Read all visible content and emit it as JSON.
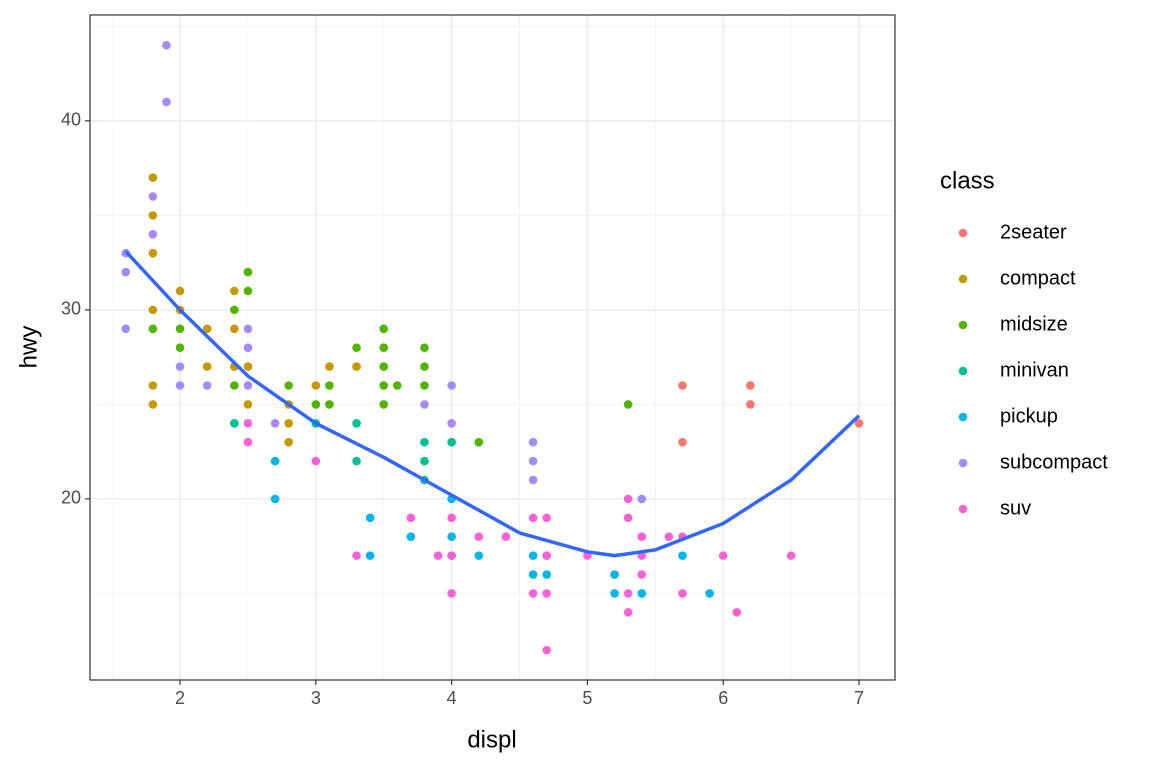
{
  "chart_data": {
    "type": "scatter",
    "x_label": "displ",
    "y_label": "hwy",
    "legend_title": "class",
    "legend_position": "right",
    "grid": true,
    "xlim": [
      1.337,
      7.265
    ],
    "ylim": [
      10.42,
      45.6
    ],
    "xticks": [
      2,
      3,
      4,
      5,
      6,
      7
    ],
    "yticks": [
      20,
      30,
      40
    ],
    "series": [
      {
        "name": "2seater",
        "color": "#F8766D",
        "x": [
          5.7,
          5.7,
          6.2,
          6.2,
          7.0
        ],
        "values": [
          26,
          23,
          26,
          25,
          24
        ]
      },
      {
        "name": "compact",
        "color": "#C49A00",
        "x": [
          1.8,
          1.8,
          1.8,
          1.8,
          1.8,
          1.8,
          2.0,
          2.0,
          2.2,
          2.2,
          2.4,
          2.4,
          2.4,
          2.5,
          2.5,
          2.8,
          2.8,
          2.8,
          3.0,
          3.1,
          3.3
        ],
        "values": [
          37,
          35,
          33,
          30,
          26,
          25,
          31,
          30,
          29,
          27,
          31,
          29,
          27,
          27,
          25,
          25,
          24,
          23,
          26,
          27,
          27
        ]
      },
      {
        "name": "midsize",
        "color": "#53B400",
        "x": [
          1.8,
          2.0,
          2.0,
          2.4,
          2.4,
          2.5,
          2.5,
          2.8,
          3.0,
          3.1,
          3.1,
          3.3,
          3.5,
          3.5,
          3.5,
          3.5,
          3.5,
          3.6,
          3.8,
          3.8,
          3.8,
          4.2,
          5.3
        ],
        "values": [
          29,
          29,
          28,
          30,
          26,
          32,
          31,
          26,
          25,
          26,
          25,
          28,
          29,
          28,
          27,
          26,
          25,
          26,
          28,
          27,
          26,
          23,
          25
        ]
      },
      {
        "name": "minivan",
        "color": "#00C094",
        "x": [
          2.4,
          3.0,
          3.3,
          3.3,
          3.8,
          3.8,
          3.8,
          4.0
        ],
        "values": [
          24,
          24,
          24,
          22,
          23,
          22,
          21,
          23
        ]
      },
      {
        "name": "pickup",
        "color": "#00B6EB",
        "x": [
          2.7,
          2.7,
          3.4,
          3.4,
          3.7,
          4.0,
          4.0,
          4.0,
          4.2,
          4.6,
          4.6,
          4.7,
          4.7,
          5.2,
          5.2,
          5.4,
          5.7,
          5.9
        ],
        "values": [
          22,
          20,
          19,
          17,
          18,
          20,
          18,
          17,
          17,
          17,
          16,
          17,
          16,
          16,
          15,
          15,
          17,
          15
        ]
      },
      {
        "name": "subcompact",
        "color": "#A58AFF",
        "x": [
          1.6,
          1.6,
          1.6,
          1.9,
          1.9,
          1.8,
          1.8,
          2.0,
          2.0,
          2.2,
          2.5,
          2.5,
          2.5,
          2.7,
          3.8,
          4.0,
          4.0,
          4.6,
          4.6,
          4.6,
          5.4
        ],
        "values": [
          33,
          32,
          29,
          44,
          41,
          36,
          34,
          27,
          26,
          26,
          29,
          28,
          26,
          24,
          25,
          26,
          24,
          23,
          22,
          21,
          20
        ]
      },
      {
        "name": "suv",
        "color": "#FB61D7",
        "x": [
          2.5,
          2.5,
          3.0,
          3.3,
          3.7,
          3.9,
          4.0,
          4.0,
          4.0,
          4.2,
          4.4,
          4.6,
          4.6,
          4.7,
          4.7,
          4.7,
          4.7,
          5.0,
          5.3,
          5.3,
          5.3,
          5.3,
          5.4,
          5.4,
          5.4,
          5.6,
          5.7,
          5.7,
          6.0,
          6.1,
          6.5
        ],
        "values": [
          24,
          23,
          22,
          17,
          19,
          17,
          19,
          17,
          15,
          18,
          18,
          19,
          15,
          19,
          17,
          15,
          12,
          17,
          20,
          19,
          15,
          14,
          18,
          17,
          16,
          18,
          18,
          15,
          17,
          14,
          17
        ]
      }
    ],
    "smooth": {
      "color": "#3366FF",
      "x": [
        1.6,
        2.0,
        2.5,
        3.0,
        3.5,
        4.0,
        4.5,
        5.0,
        5.2,
        5.5,
        6.0,
        6.5,
        7.0
      ],
      "values": [
        33.1,
        30.0,
        26.5,
        24.0,
        22.2,
        20.2,
        18.2,
        17.2,
        17.0,
        17.3,
        18.7,
        21.0,
        24.4
      ]
    }
  }
}
